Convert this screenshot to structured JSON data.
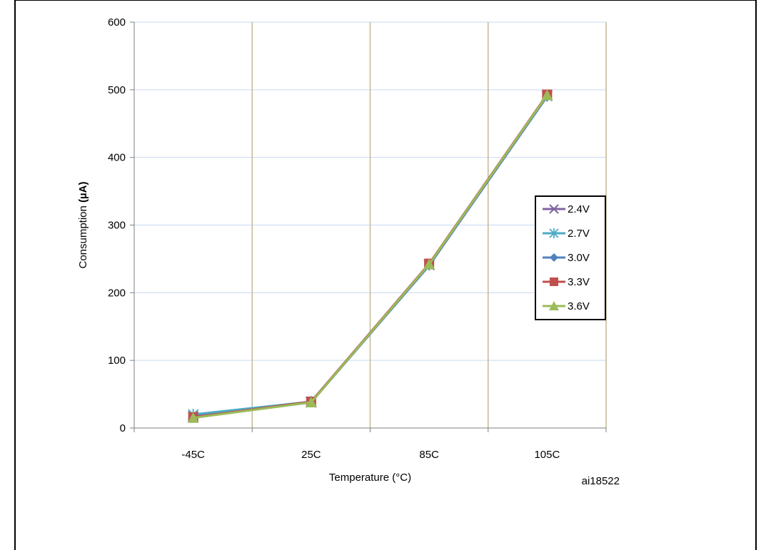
{
  "chart_data": {
    "type": "line",
    "title": "",
    "xlabel": "Temperature (°C)",
    "ylabel_prefix": "Consumption ",
    "ylabel_bold": "(µA)",
    "categories": [
      "-45C",
      "25C",
      "85C",
      "105C"
    ],
    "ylim": [
      0,
      600
    ],
    "yticks": [
      0,
      100,
      200,
      300,
      400,
      500,
      600
    ],
    "grid": true,
    "legend_position": "right",
    "series": [
      {
        "name": "2.4V",
        "color": "#8064a2",
        "marker": "x",
        "values": [
          17,
          38,
          241,
          491
        ]
      },
      {
        "name": "2.7V",
        "color": "#4bacc6",
        "marker": "asterisk",
        "values": [
          20,
          39,
          242,
          491
        ]
      },
      {
        "name": "3.0V",
        "color": "#4f81bd",
        "marker": "diamond",
        "values": [
          16,
          38,
          240,
          490
        ]
      },
      {
        "name": "3.3V",
        "color": "#c0504d",
        "marker": "square",
        "values": [
          16,
          39,
          243,
          493
        ]
      },
      {
        "name": "3.6V",
        "color": "#9bbb59",
        "marker": "triangle",
        "values": [
          15,
          38,
          242,
          492
        ]
      }
    ],
    "annotation": "ai18522"
  },
  "colors": {
    "h_grid": "#c6d9f1",
    "v_grid": "#c4b996",
    "axis": "#808080"
  }
}
